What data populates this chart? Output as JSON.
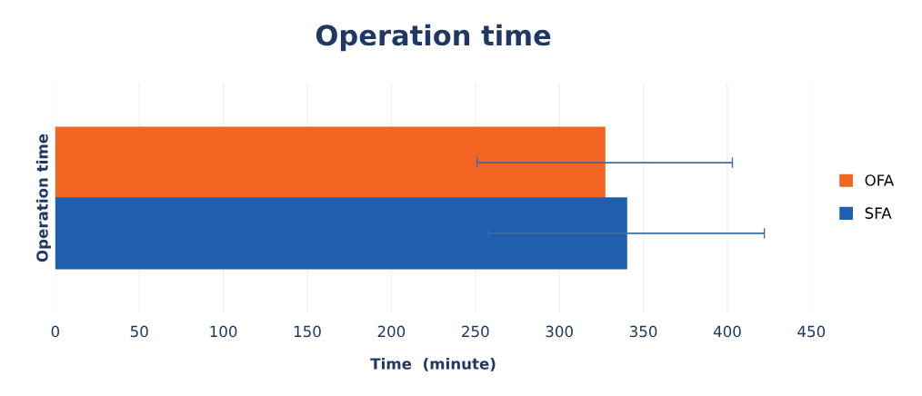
{
  "chart_data": {
    "type": "bar",
    "orientation": "horizontal",
    "title": "Operation time",
    "xlabel": "Time  (minute)",
    "categories": [
      "Operation time"
    ],
    "series": [
      {
        "name": "OFA",
        "color": "#f26522",
        "values": [
          327
        ],
        "errors": [
          76
        ]
      },
      {
        "name": "SFA",
        "color": "#1f5fad",
        "values": [
          340
        ],
        "errors": [
          82
        ]
      }
    ],
    "xlim": [
      0,
      450
    ],
    "xticks": [
      0,
      50,
      100,
      150,
      200,
      250,
      300,
      350,
      400,
      450
    ],
    "grid": "x",
    "legend": "right"
  }
}
